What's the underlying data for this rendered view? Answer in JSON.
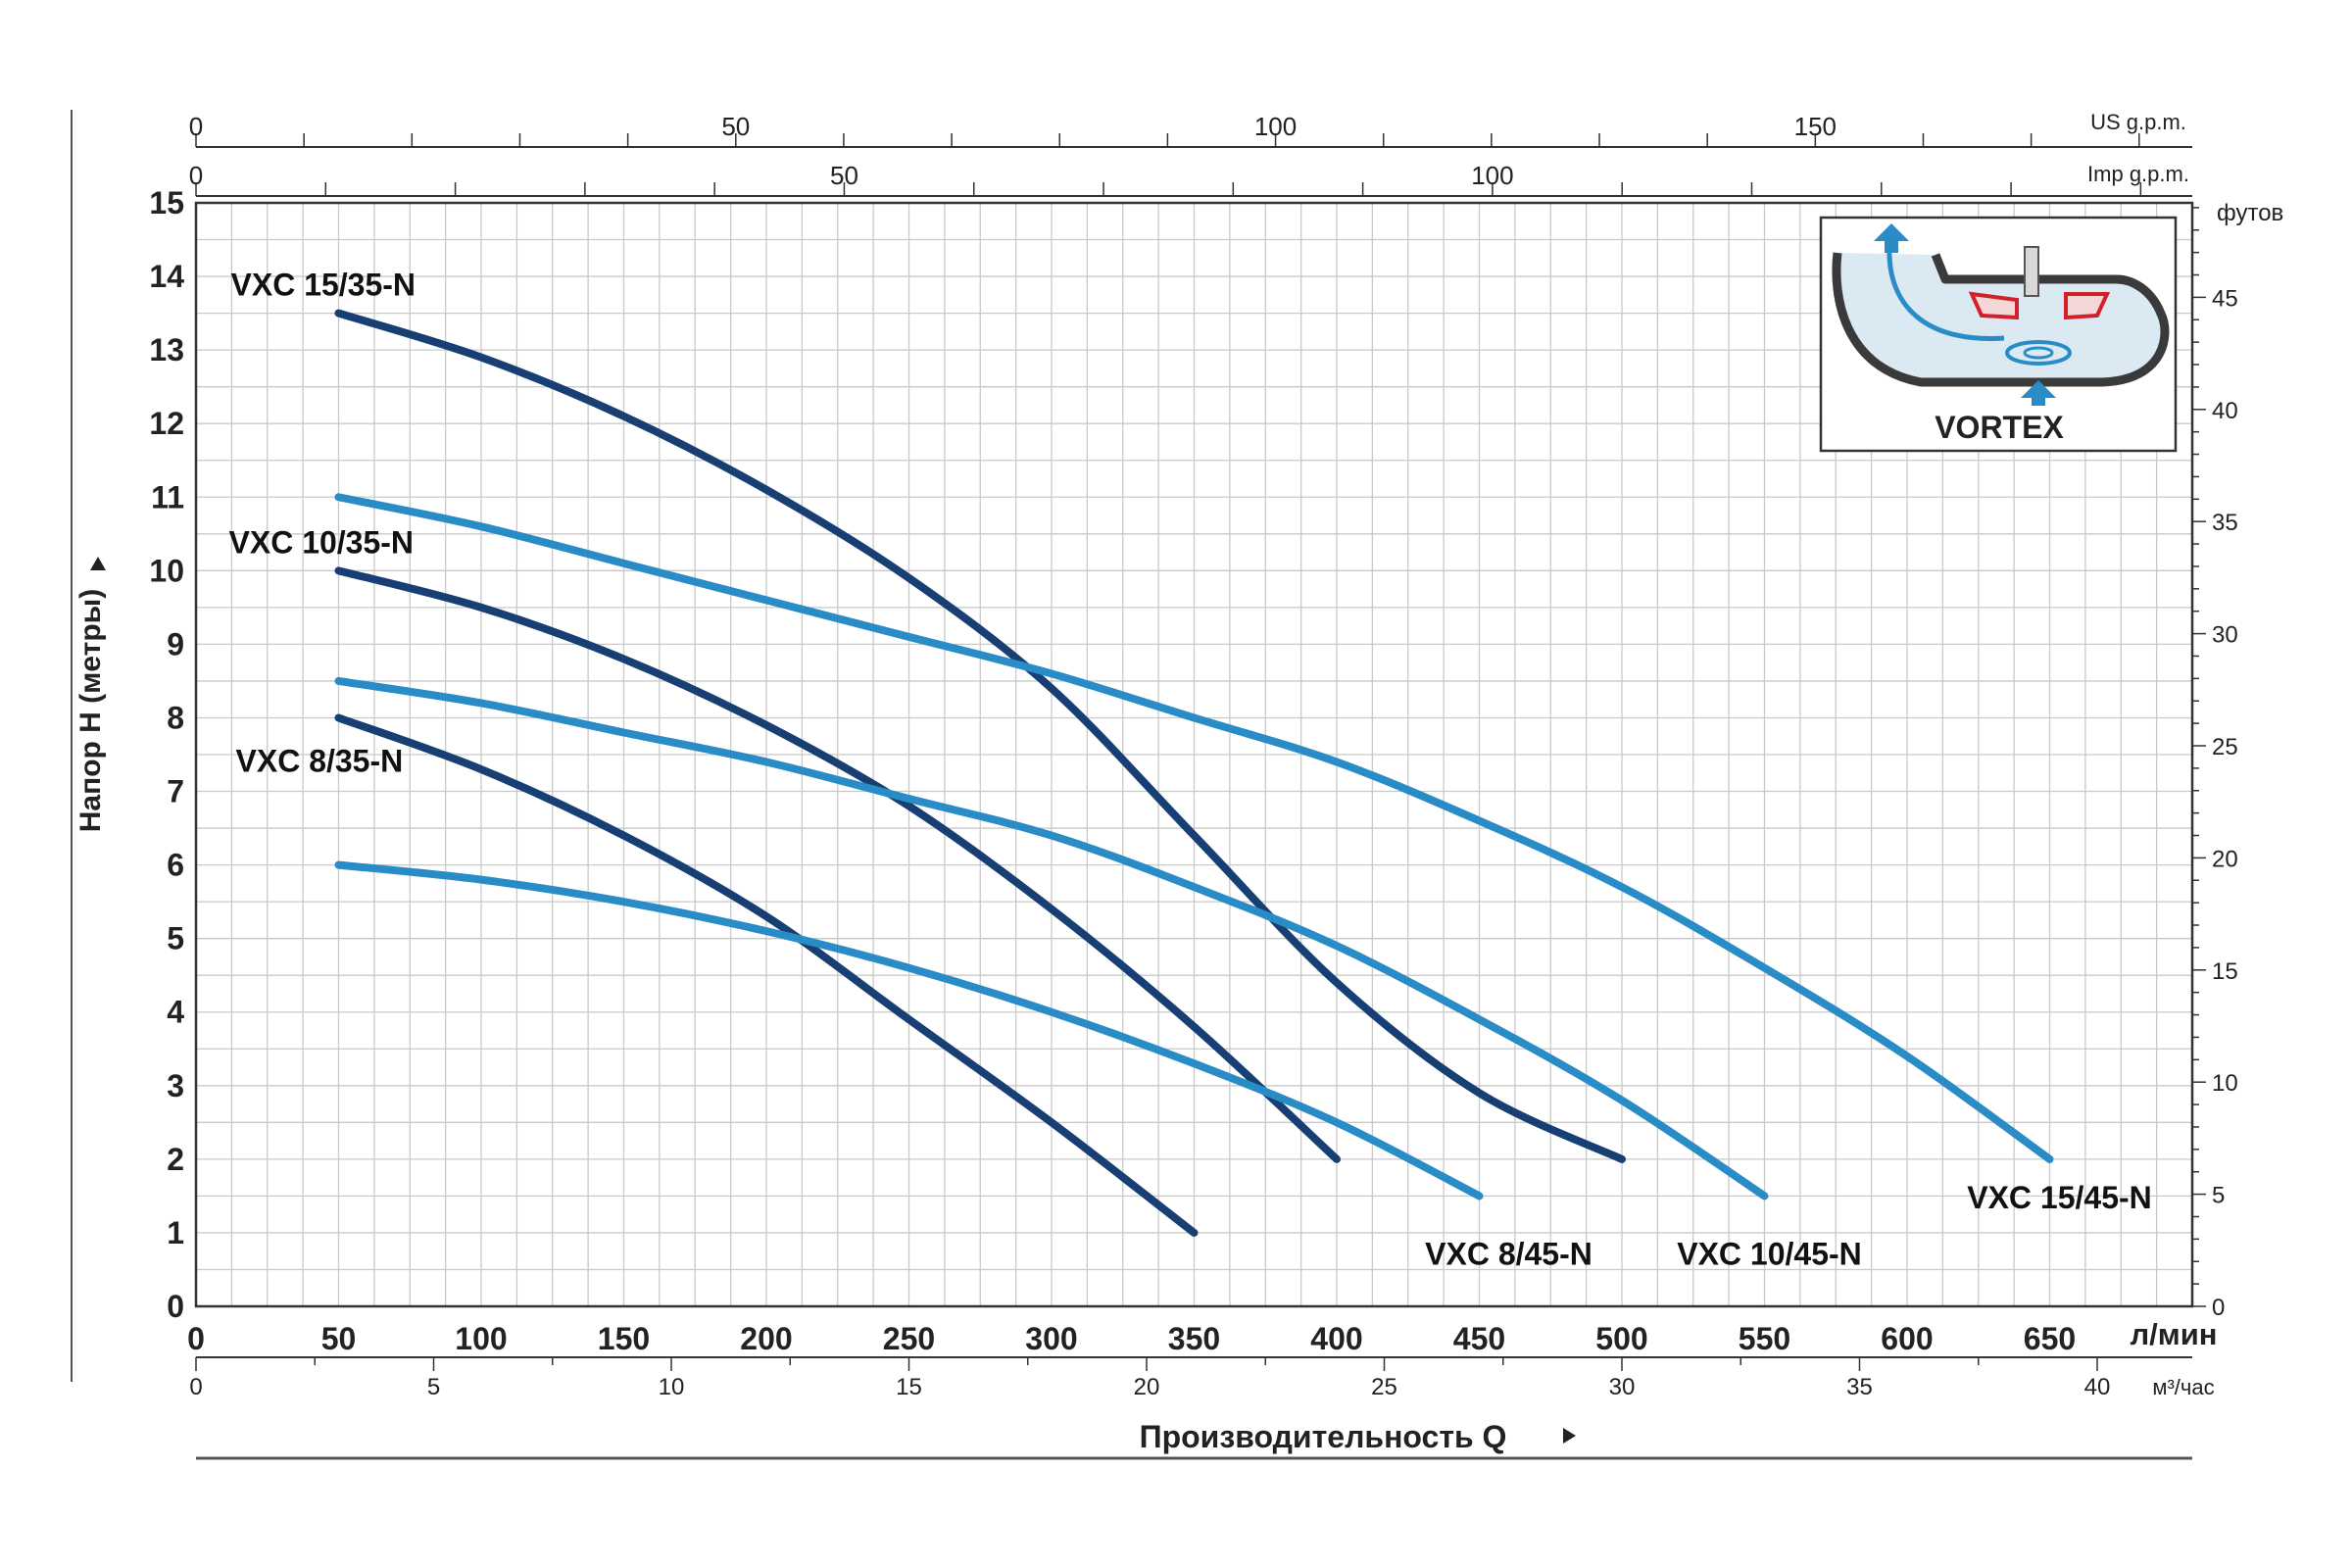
{
  "chart_data": {
    "type": "line",
    "xlabel": "Производительность  Q",
    "ylabel": "Напор Н (метры)",
    "x_unit": "л/мин",
    "xlim": [
      0,
      700
    ],
    "ylim": [
      0,
      15
    ],
    "grid": true,
    "x_ticks": [
      0,
      50,
      100,
      150,
      200,
      250,
      300,
      350,
      400,
      450,
      500,
      550,
      600,
      650
    ],
    "y_ticks": [
      0,
      1,
      2,
      3,
      4,
      5,
      6,
      7,
      8,
      9,
      10,
      11,
      12,
      13,
      14,
      15
    ],
    "series": [
      {
        "name": "VXC 15/35-N",
        "color": "#173f73",
        "x": [
          50,
          100,
          150,
          200,
          250,
          300,
          350,
          400,
          450,
          500
        ],
        "y": [
          13.5,
          12.9,
          12.1,
          11.1,
          9.9,
          8.4,
          6.4,
          4.4,
          2.9,
          2.0
        ]
      },
      {
        "name": "VXC 10/35-N",
        "color": "#173f73",
        "x": [
          50,
          100,
          150,
          200,
          250,
          300,
          350,
          400
        ],
        "y": [
          10.0,
          9.5,
          8.8,
          7.9,
          6.8,
          5.4,
          3.8,
          2.0
        ]
      },
      {
        "name": "VXC 8/35-N",
        "color": "#173f73",
        "x": [
          50,
          100,
          150,
          200,
          250,
          300,
          350
        ],
        "y": [
          8.0,
          7.3,
          6.4,
          5.3,
          3.9,
          2.5,
          1.0
        ]
      },
      {
        "name": "VXC 15/45-N",
        "color": "#2a8cc6",
        "x": [
          50,
          100,
          150,
          200,
          250,
          300,
          350,
          400,
          450,
          500,
          550,
          600,
          650
        ],
        "y": [
          11.0,
          10.6,
          10.1,
          9.6,
          9.1,
          8.6,
          8.0,
          7.4,
          6.6,
          5.7,
          4.6,
          3.4,
          2.0
        ]
      },
      {
        "name": "VXC 10/45-N",
        "color": "#2a8cc6",
        "x": [
          50,
          100,
          150,
          200,
          250,
          300,
          350,
          400,
          450,
          500,
          550
        ],
        "y": [
          8.5,
          8.2,
          7.8,
          7.4,
          6.9,
          6.4,
          5.7,
          4.9,
          3.9,
          2.8,
          1.5
        ]
      },
      {
        "name": "VXC 8/45-N",
        "color": "#2a8cc6",
        "x": [
          50,
          100,
          150,
          200,
          250,
          300,
          350,
          400,
          450
        ],
        "y": [
          6.0,
          5.8,
          5.5,
          5.1,
          4.6,
          4.0,
          3.3,
          2.5,
          1.5
        ]
      }
    ],
    "top_axis_us": {
      "unit": "US g.p.m.",
      "ticks": [
        0,
        50,
        100,
        150
      ]
    },
    "top_axis_imp": {
      "unit": "Imp g.p.m.",
      "ticks": [
        0,
        50,
        100
      ]
    },
    "bottom_axis_m3": {
      "unit": "м³/час",
      "ticks": [
        0,
        5,
        10,
        15,
        20,
        25,
        30,
        35,
        40
      ]
    },
    "right_axis_ft": {
      "unit": "футов",
      "ticks": [
        0,
        5,
        10,
        15,
        20,
        25,
        30,
        35,
        40,
        45
      ]
    }
  },
  "inset": {
    "label": "VORTEX"
  }
}
